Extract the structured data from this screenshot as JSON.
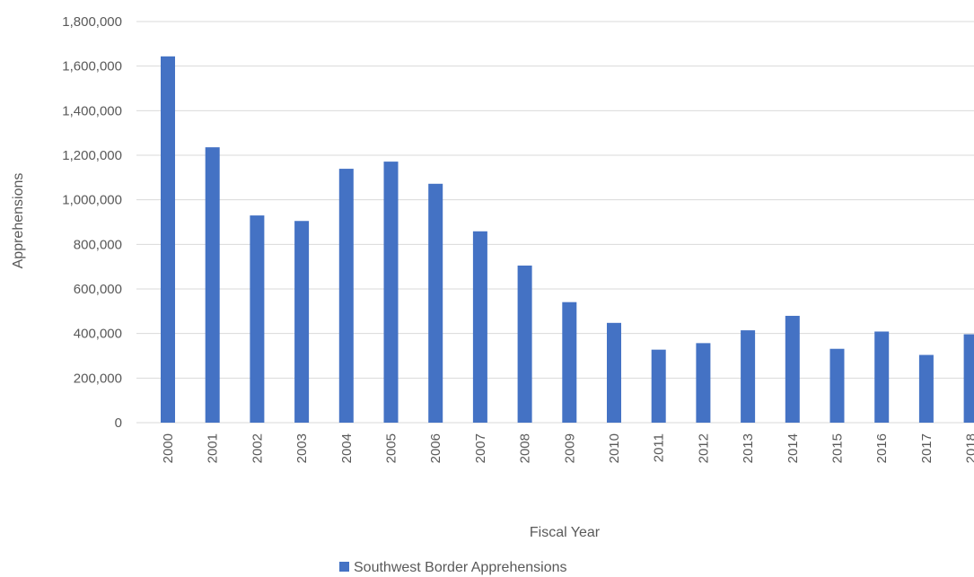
{
  "chart_data": {
    "type": "bar",
    "title": "",
    "xlabel": "Fiscal Year",
    "ylabel": "Apprehensions",
    "ylim": [
      0,
      1800000
    ],
    "yticks": [
      0,
      200000,
      400000,
      600000,
      800000,
      1000000,
      1200000,
      1400000,
      1600000,
      1800000
    ],
    "ytick_labels": [
      "0",
      "200,000",
      "400,000",
      "600,000",
      "800,000",
      "1,000,000",
      "1,200,000",
      "1,400,000",
      "1,600,000",
      "1,800,000"
    ],
    "categories": [
      "2000",
      "2001",
      "2002",
      "2003",
      "2004",
      "2005",
      "2006",
      "2007",
      "2008",
      "2009",
      "2010",
      "2011",
      "2012",
      "2013",
      "2014",
      "2015",
      "2016",
      "2017",
      "2018"
    ],
    "series": [
      {
        "name": "Southwest Border Apprehensions",
        "color": "#4472c4",
        "values": [
          1643679,
          1235718,
          929809,
          905065,
          1139282,
          1171396,
          1071972,
          858638,
          705005,
          540865,
          447731,
          327577,
          356873,
          414397,
          479371,
          331333,
          408870,
          303916,
          396579
        ]
      }
    ],
    "grid": true,
    "gridline_color": "#d9d9d9",
    "legend_position": "bottom-center"
  }
}
